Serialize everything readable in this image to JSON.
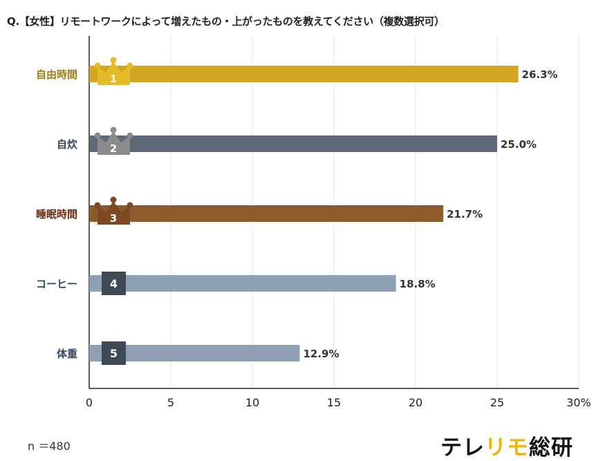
{
  "chart_data": {
    "type": "bar",
    "orientation": "horizontal",
    "title": "Q.【女性】リモートワークによって増えたもの・上がったものを教えてください（複数選択可）",
    "categories": [
      "自由時間",
      "自炊",
      "睡眠時間",
      "コーヒー",
      "体重"
    ],
    "values": [
      26.3,
      25.0,
      21.7,
      18.8,
      12.9
    ],
    "value_labels": [
      "26.3%",
      "25.0%",
      "21.7%",
      "18.8%",
      "12.9%"
    ],
    "ranks": [
      "1",
      "2",
      "3",
      "4",
      "5"
    ],
    "xlim": [
      0,
      30
    ],
    "xticks": [
      0,
      5,
      10,
      15,
      20,
      25,
      30
    ],
    "xtick_labels": [
      "0",
      "5",
      "10",
      "15",
      "20",
      "25",
      "30%"
    ],
    "grid": true,
    "xlabel": "",
    "ylabel": "",
    "colors": {
      "bars": [
        "#D4A520",
        "#5E6A77",
        "#8D5B2B",
        "#8EA1B4",
        "#8EA1B4"
      ],
      "badges": [
        "#E4BC29",
        "#8C8C8C",
        "#7B4A22",
        "#3E4955",
        "#3E4955"
      ],
      "labels": [
        "#9C7C0E",
        "#3A4656",
        "#6A2A12",
        "#2E4A68",
        "#2E4A68"
      ]
    }
  },
  "note": "n ＝480",
  "logo": {
    "part1": "テレ",
    "part2": "リモ",
    "part3": "総研"
  }
}
